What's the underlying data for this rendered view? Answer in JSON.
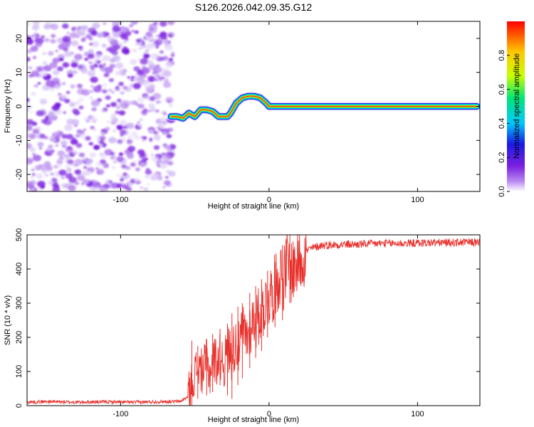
{
  "title": "S126.2026.042.09.35.G12",
  "colors": {
    "background": "#ffffff",
    "axis": "#000000",
    "snr_line": "#e8302b",
    "noise_purple": "#7a1fe0",
    "track_core": "#ff2020"
  },
  "chart_data": [
    {
      "type": "heatmap",
      "name": "spectrogram",
      "xlabel": "Height of straight line (km)",
      "ylabel": "Frequency (Hz)",
      "xlim": [
        -163,
        142
      ],
      "ylim": [
        -25,
        25
      ],
      "xticks": [
        -100,
        0,
        100
      ],
      "yticks": [
        -20,
        -10,
        0,
        10,
        20
      ],
      "noise_region_x": [
        -163,
        -66
      ],
      "track": {
        "x": [
          -66,
          -62,
          -58,
          -54,
          -50,
          -46,
          -42,
          -38,
          -34,
          -30,
          -28,
          -26,
          -22,
          -18,
          -14,
          -10,
          -6,
          -2,
          0,
          20,
          60,
          100,
          140
        ],
        "freq": [
          -3,
          -3,
          -3.5,
          -2,
          -3,
          -1,
          -1,
          -1.5,
          -3,
          -3,
          -3,
          -2,
          1,
          2.5,
          3,
          3,
          2.5,
          1,
          0,
          0,
          0,
          0,
          0
        ]
      },
      "colorbar": {
        "label": "Normalized spectral amplitude",
        "range": [
          0,
          1
        ],
        "ticks": [
          "0.0",
          "0.2",
          "0.4",
          "0.6",
          "0.8"
        ],
        "stops": [
          "#ffffff",
          "#b888f0",
          "#7a1fe0",
          "#1a1ae6",
          "#00c8ff",
          "#00e676",
          "#c8ff00",
          "#ffc800",
          "#ff0000"
        ]
      }
    },
    {
      "type": "line",
      "name": "snr",
      "xlabel": "Height of straight line (km)",
      "ylabel": "SNR (10 * v/v)",
      "xlim": [
        -163,
        142
      ],
      "ylim": [
        0,
        500
      ],
      "xticks": [
        -100,
        0,
        100
      ],
      "yticks": [
        0,
        100,
        200,
        300,
        400,
        500
      ],
      "series": [
        {
          "name": "SNR",
          "x": [
            -163,
            -150,
            -130,
            -110,
            -90,
            -70,
            -60,
            -55,
            -52,
            -50,
            -48,
            -45,
            -42,
            -40,
            -38,
            -35,
            -32,
            -30,
            -28,
            -25,
            -22,
            -20,
            -18,
            -15,
            -12,
            -10,
            -8,
            -5,
            -2,
            0,
            2,
            5,
            8,
            10,
            12,
            14,
            16,
            18,
            20,
            24,
            28,
            32,
            36,
            40,
            50,
            60,
            70,
            80,
            90,
            100,
            110,
            120,
            130,
            142
          ],
          "values": [
            10,
            12,
            10,
            11,
            10,
            12,
            12,
            25,
            70,
            95,
            115,
            100,
            130,
            90,
            140,
            130,
            150,
            120,
            170,
            150,
            190,
            160,
            220,
            200,
            240,
            250,
            250,
            280,
            300,
            320,
            330,
            360,
            390,
            370,
            420,
            400,
            400,
            410,
            430,
            450,
            460,
            465,
            470,
            470,
            472,
            472,
            474,
            475,
            475,
            476,
            477,
            477,
            478,
            478
          ],
          "spikes_x": [
            -52,
            -48,
            -42,
            -38,
            -33,
            -28,
            -25,
            -21,
            -18,
            -13,
            -9,
            -5,
            -1,
            4,
            9,
            14
          ],
          "spikes_hi": [
            190,
            175,
            195,
            210,
            225,
            240,
            270,
            290,
            300,
            330,
            350,
            370,
            395,
            420,
            470,
            500
          ],
          "spikes_lo": [
            0,
            20,
            30,
            40,
            60,
            30,
            20,
            60,
            80,
            110,
            140,
            160,
            200,
            230,
            250,
            300
          ]
        }
      ]
    }
  ]
}
